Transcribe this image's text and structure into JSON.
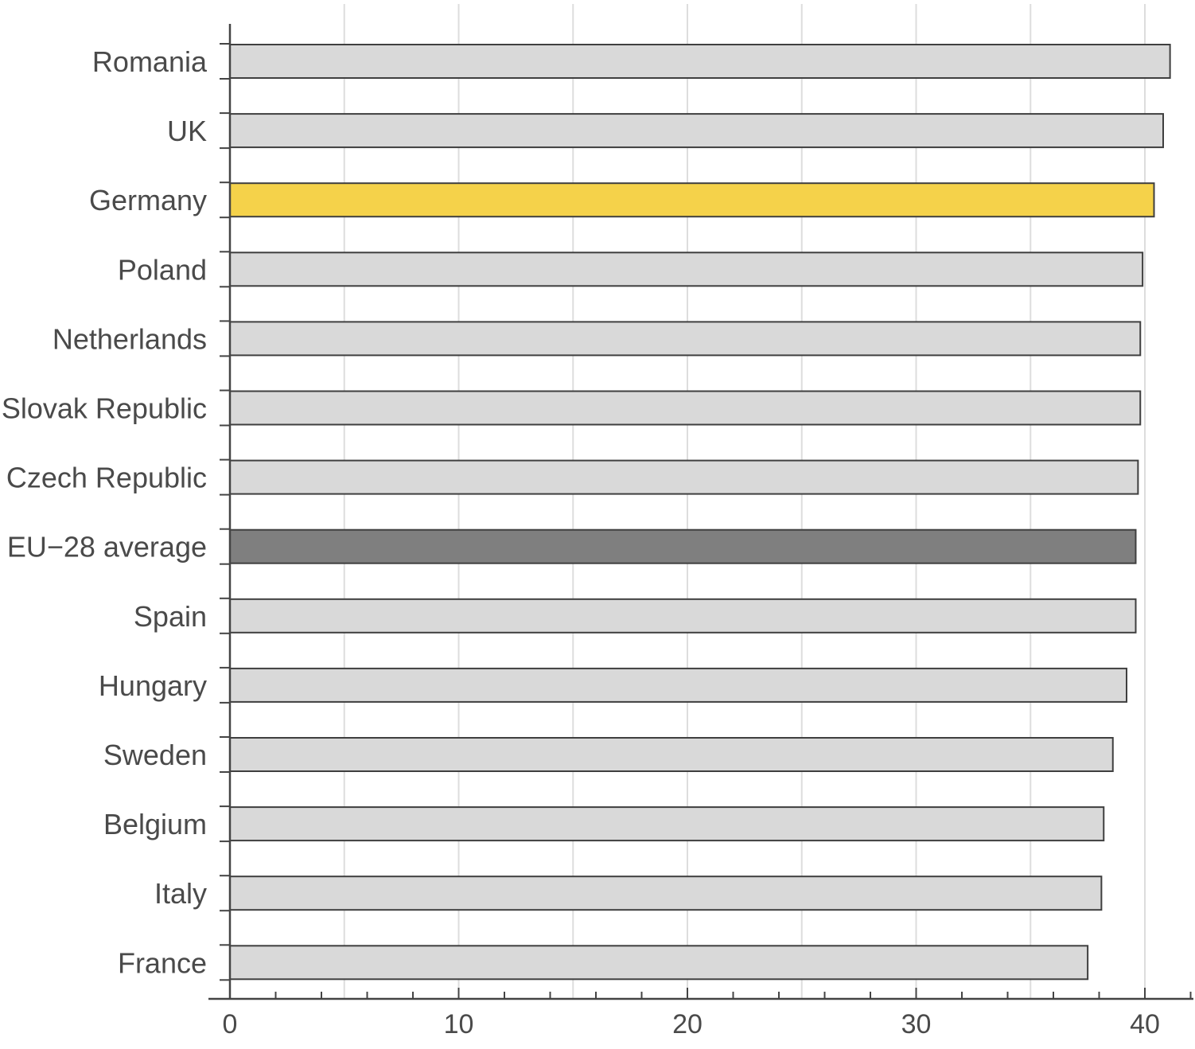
{
  "chart_data": {
    "type": "bar",
    "orientation": "horizontal",
    "categories": [
      "Romania",
      "UK",
      "Germany",
      "Poland",
      "Netherlands",
      "Slovak Republic",
      "Czech Republic",
      "EU−28 average",
      "Spain",
      "Hungary",
      "Sweden",
      "Belgium",
      "Italy",
      "France"
    ],
    "values": [
      41.1,
      40.8,
      40.4,
      39.9,
      39.8,
      39.8,
      39.7,
      39.6,
      39.6,
      39.2,
      38.6,
      38.2,
      38.1,
      37.5
    ],
    "xlim": [
      0,
      42
    ],
    "xticks": [
      0,
      10,
      20,
      30,
      40
    ],
    "xlabel": "",
    "ylabel": "",
    "title": "",
    "grid": true,
    "colors": {
      "default": "#d9d9d9",
      "Germany": "#f5d24a",
      "EU−28 average": "#7f7f7f",
      "bar_edge": "#3f3f3f",
      "axis": "#444444",
      "grid": "#dddddd"
    }
  }
}
